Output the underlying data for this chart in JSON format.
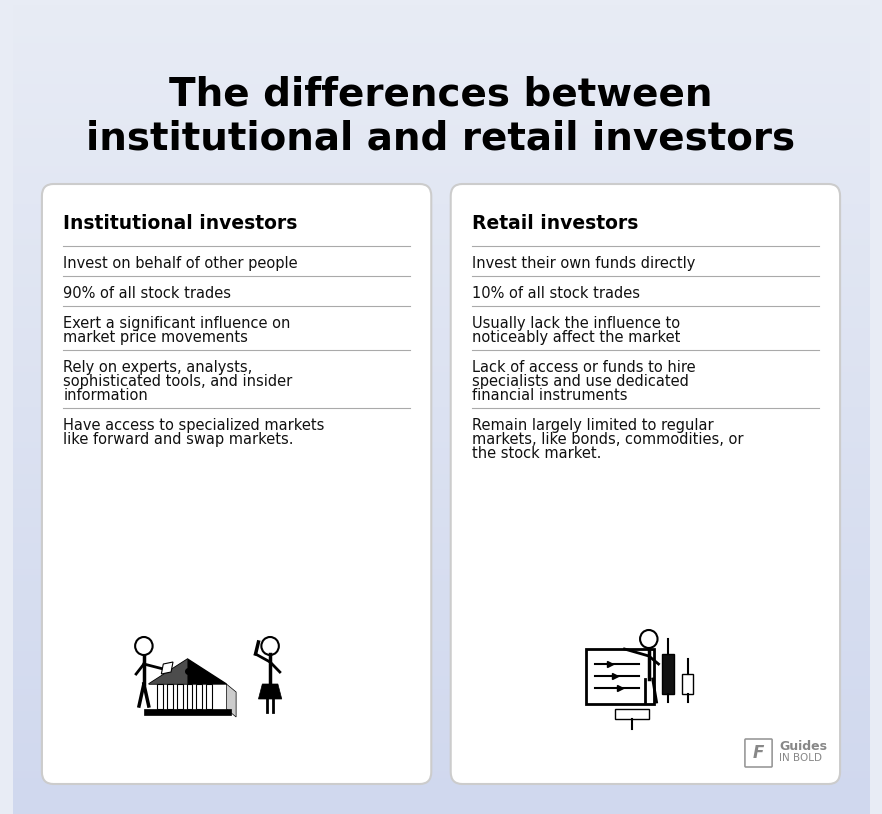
{
  "title_line1": "The differences between",
  "title_line2": "institutional and retail investors",
  "bg_color_top": "#e8ecf5",
  "bg_color_bottom": "#dde3f0",
  "card_bg": "#ffffff",
  "card_border": "#cccccc",
  "left_header": "Institutional investors",
  "right_header": "Retail investors",
  "left_items": [
    "Invest on behalf of other people",
    "90% of all stock trades",
    "Exert a significant influence on\nmarket price movements",
    "Rely on experts, analysts,\nsophisticated tools, and insider\ninformation",
    "Have access to specialized markets\nlike forward and swap markets."
  ],
  "right_items": [
    "Invest their own funds directly",
    "10% of all stock trades",
    "Usually lack the influence to\nnoticeably affect the market",
    "Lack of access or funds to hire\nspecialists and use dedicated\nfinancial instruments",
    "Remain largely limited to regular\nmarkets, like bonds, commodities, or\nthe stock market."
  ],
  "divider_color": "#aaaaaa",
  "text_color": "#111111",
  "header_color": "#000000",
  "title_color": "#000000",
  "watermark_text1": "Guides",
  "watermark_text2": "IN BOLD",
  "watermark_color": "#888888"
}
